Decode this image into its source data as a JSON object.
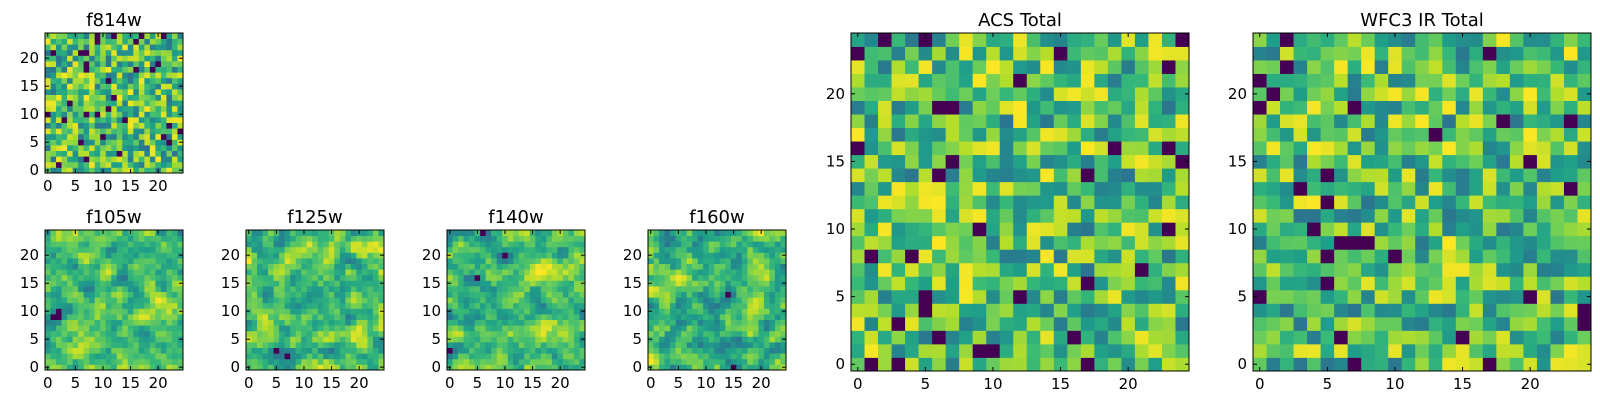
{
  "chart_data": [
    {
      "type": "heatmap",
      "title": "f814w",
      "colormap": "viridis",
      "size": 25,
      "xlim": [
        0,
        24
      ],
      "ylim": [
        0,
        24
      ],
      "xticks": [
        "0",
        "5",
        "10",
        "15",
        "20"
      ],
      "yticks": [
        "0",
        "5",
        "10",
        "15",
        "20"
      ],
      "seed": 814,
      "smooth": 0
    },
    {
      "type": "heatmap",
      "title": "f105w",
      "colormap": "viridis",
      "size": 25,
      "xlim": [
        0,
        24
      ],
      "ylim": [
        0,
        24
      ],
      "xticks": [
        "0",
        "5",
        "10",
        "15",
        "20"
      ],
      "yticks": [
        "0",
        "5",
        "10",
        "15",
        "20"
      ],
      "seed": 105,
      "smooth": 1
    },
    {
      "type": "heatmap",
      "title": "f125w",
      "colormap": "viridis",
      "size": 25,
      "xlim": [
        0,
        24
      ],
      "ylim": [
        0,
        24
      ],
      "xticks": [
        "0",
        "5",
        "10",
        "15",
        "20"
      ],
      "yticks": [
        "0",
        "5",
        "10",
        "15",
        "20"
      ],
      "seed": 125,
      "smooth": 1
    },
    {
      "type": "heatmap",
      "title": "f140w",
      "colormap": "viridis",
      "size": 25,
      "xlim": [
        0,
        24
      ],
      "ylim": [
        0,
        24
      ],
      "xticks": [
        "0",
        "5",
        "10",
        "15",
        "20"
      ],
      "yticks": [
        "0",
        "5",
        "10",
        "15",
        "20"
      ],
      "seed": 140,
      "smooth": 1
    },
    {
      "type": "heatmap",
      "title": "f160w",
      "colormap": "viridis",
      "size": 25,
      "xlim": [
        0,
        24
      ],
      "ylim": [
        0,
        24
      ],
      "xticks": [
        "0",
        "5",
        "10",
        "15",
        "20"
      ],
      "yticks": [
        "0",
        "5",
        "10",
        "15",
        "20"
      ],
      "seed": 160,
      "smooth": 1
    },
    {
      "type": "heatmap",
      "title": "ACS Total",
      "colormap": "viridis",
      "size": 25,
      "xlim": [
        0,
        24
      ],
      "ylim": [
        0,
        24
      ],
      "xticks": [
        "0",
        "5",
        "10",
        "15",
        "20"
      ],
      "yticks": [
        "0",
        "5",
        "10",
        "15",
        "20"
      ],
      "seed": 901,
      "smooth": 0
    },
    {
      "type": "heatmap",
      "title": "WFC3 IR Total",
      "colormap": "viridis",
      "size": 25,
      "xlim": [
        0,
        24
      ],
      "ylim": [
        0,
        24
      ],
      "xticks": [
        "0",
        "5",
        "10",
        "15",
        "20"
      ],
      "yticks": [
        "0",
        "5",
        "10",
        "15",
        "20"
      ],
      "seed": 902,
      "smooth": 0
    }
  ]
}
